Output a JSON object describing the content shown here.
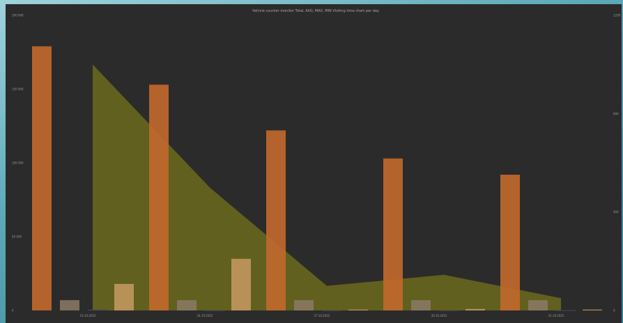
{
  "chart_data": {
    "type": "bar",
    "title": "Vehicle counter monitor Total, AVG, MAX, MIN Visiting time chart per day",
    "categories": [
      "23.10.2022",
      "24.10.2022",
      "27.10.2022",
      "30.10.2022",
      "31.10.2022"
    ],
    "y_left": {
      "ylim": [
        0,
        200000
      ],
      "ticks": [
        "0",
        "50 000",
        "100 000",
        "150 000",
        "200 000"
      ]
    },
    "y_right": {
      "ylim": [
        0,
        1200
      ],
      "ticks": [
        "0",
        "400",
        "800",
        "1200"
      ]
    },
    "bar_series": [
      {
        "color": "#c2692b",
        "values": [
          179000,
          153000,
          122000,
          103000,
          92000
        ]
      },
      {
        "color": "#8c7a66",
        "values": [
          7000,
          7000,
          7000,
          7000,
          7000
        ]
      },
      {
        "color": "#4a4a66",
        "values": [
          600,
          200,
          200,
          200,
          200
        ]
      },
      {
        "color": "#c89a63",
        "values": [
          18000,
          35000,
          600,
          1000,
          600
        ]
      }
    ],
    "area_series": {
      "color": "#6b6a1c",
      "values": [
        1000,
        500,
        100,
        145,
        50
      ]
    },
    "legend": "none",
    "grid": false
  }
}
